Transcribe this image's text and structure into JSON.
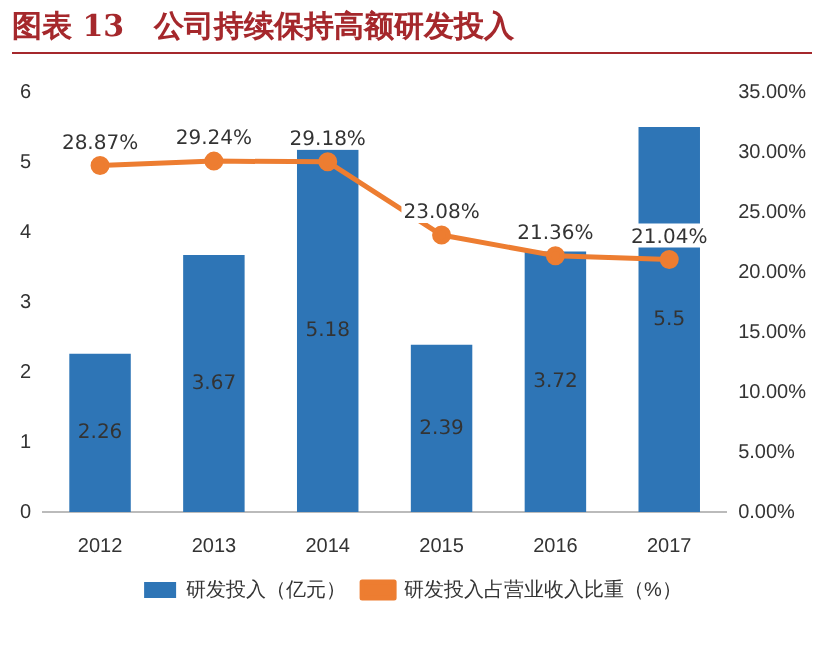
{
  "chart_data": {
    "type": "bar",
    "title": "图表 13　公司持续保持高额研发投入",
    "categories": [
      "2012",
      "2013",
      "2014",
      "2015",
      "2016",
      "2017"
    ],
    "series": [
      {
        "name": "研发投入（亿元）",
        "color": "#2e75b6",
        "values": [
          2.26,
          3.67,
          5.18,
          2.39,
          3.72,
          5.5
        ],
        "value_labels": [
          "2.26",
          "3.67",
          "5.18",
          "2.39",
          "3.72",
          "5.5"
        ]
      },
      {
        "name": "研发投入占营业收入比重（%）",
        "type": "line",
        "axis": "y2",
        "color": "#ed7d31",
        "values": [
          28.87,
          29.24,
          29.18,
          23.08,
          21.36,
          21.04
        ],
        "value_labels": [
          "28.87%",
          "29.24%",
          "29.18%",
          "23.08%",
          "21.36%",
          "21.04%"
        ]
      }
    ],
    "ylim": [
      0,
      6
    ],
    "yticks": [
      0,
      1,
      2,
      3,
      4,
      5,
      6
    ],
    "y2lim": [
      0,
      35
    ],
    "y2ticks": [
      {
        "value": 0,
        "label": "0.00%"
      },
      {
        "value": 5,
        "label": "5.00%"
      },
      {
        "value": 10,
        "label": "10.00%"
      },
      {
        "value": 15,
        "label": "15.00%"
      },
      {
        "value": 20,
        "label": "20.00%"
      },
      {
        "value": 25,
        "label": "25.00%"
      },
      {
        "value": 30,
        "label": "30.00%"
      },
      {
        "value": 35,
        "label": "35.00%"
      }
    ],
    "grid": false,
    "legend": "bottom",
    "marker": "circle"
  }
}
